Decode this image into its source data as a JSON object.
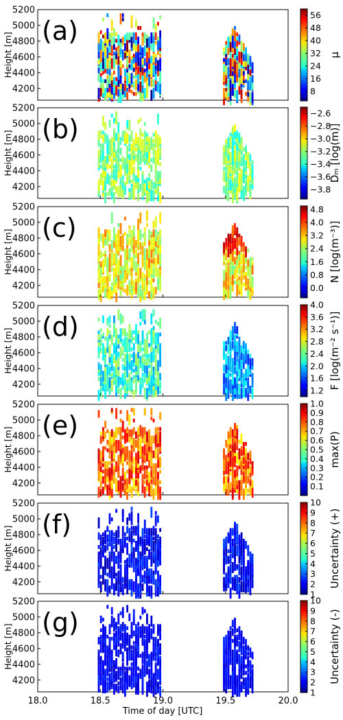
{
  "chart_data": {
    "type": "heatmap",
    "xlabel": "Time of day [UTC]",
    "x_ticks": [
      "18.0",
      "18.5",
      "19.0",
      "19.5",
      "20.0"
    ],
    "xlim": [
      18.0,
      20.0
    ],
    "ylim": [
      4050,
      5200
    ],
    "colormap": "jet",
    "panels": [
      {
        "id": "a",
        "label": "(a)",
        "ylabel": "Height [m]",
        "y_ticks": [
          "4200",
          "4400",
          "4600",
          "4800",
          "5000",
          "5200"
        ],
        "colorbar": {
          "label": "μ",
          "ticks": [
            "8",
            "16",
            "24",
            "32",
            "40",
            "48",
            "56"
          ],
          "min": 2,
          "max": 60
        },
        "value_style": "mixed",
        "mean_level": 0.5,
        "spread": 0.9,
        "show_x_ticklabels": false
      },
      {
        "id": "b",
        "label": "(b)",
        "ylabel": "Dₘ [log(m)]",
        "y_ticks": [
          "4200",
          "4400",
          "4600",
          "4800",
          "5000",
          "5200"
        ],
        "colorbar": {
          "label": "Dₘ [log(m)]",
          "ticks": [
            "−3.8",
            "−3.6",
            "−3.4",
            "−3.2",
            "−3.0",
            "−2.8",
            "−2.6"
          ],
          "min": -3.95,
          "max": -2.5
        },
        "value_style": "mid",
        "mean_level": 0.5,
        "spread": 0.25,
        "show_x_ticklabels": false
      },
      {
        "id": "c",
        "label": "(c)",
        "ylabel": "Height [m]",
        "y_ticks": [
          "4200",
          "4400",
          "4600",
          "4800",
          "5000",
          "5200"
        ],
        "colorbar": {
          "label": "N [log(m⁻³)]",
          "ticks": [
            "0.0",
            "0.8",
            "1.6",
            "2.4",
            "3.2",
            "4.0",
            "4.8"
          ],
          "min": -0.6,
          "max": 5.0
        },
        "value_style": "mid-high",
        "mean_level": 0.62,
        "spread": 0.3,
        "show_x_ticklabels": false
      },
      {
        "id": "d",
        "label": "(d)",
        "ylabel": "Height [m]",
        "y_ticks": [
          "4200",
          "4400",
          "4600",
          "4800",
          "5000",
          "5200"
        ],
        "colorbar": {
          "label": "F [log(m⁻² s⁻¹)]",
          "ticks": [
            "1.2",
            "1.6",
            "2.0",
            "2.4",
            "2.8",
            "3.2",
            "3.6",
            "4.0"
          ],
          "min": 1.0,
          "max": 4.0
        },
        "value_style": "mid-low",
        "mean_level": 0.42,
        "spread": 0.3,
        "show_x_ticklabels": false
      },
      {
        "id": "e",
        "label": "(e)",
        "ylabel": "Height [m]",
        "y_ticks": [
          "4200",
          "4400",
          "4600",
          "4800",
          "5000",
          "5200"
        ],
        "colorbar": {
          "label": "max(P)",
          "ticks": [
            "0.1",
            "0.2",
            "0.3",
            "0.4",
            "0.5",
            "0.6",
            "0.7",
            "0.8",
            "0.9",
            "1.0"
          ],
          "min": 0.0,
          "max": 1.0
        },
        "value_style": "high",
        "mean_level": 0.78,
        "spread": 0.3,
        "show_x_ticklabels": false
      },
      {
        "id": "f",
        "label": "(f)",
        "ylabel": "Height [m]",
        "y_ticks": [
          "4200",
          "4400",
          "4600",
          "4800",
          "5000",
          "5200"
        ],
        "colorbar": {
          "label": "Uncertainty (+)",
          "ticks": [
            "1",
            "2",
            "3",
            "4",
            "5",
            "6",
            "7",
            "8",
            "9",
            "10"
          ],
          "min": 1,
          "max": 10
        },
        "value_style": "low",
        "mean_level": 0.12,
        "spread": 0.15,
        "show_x_ticklabels": false
      },
      {
        "id": "g",
        "label": "(g)",
        "ylabel": "Height [m]",
        "y_ticks": [
          "4200",
          "4400",
          "4600",
          "4800",
          "5000",
          "5200"
        ],
        "colorbar": {
          "label": "Uncertainty (-)",
          "ticks": [
            "1",
            "2",
            "3",
            "4",
            "5",
            "6",
            "7",
            "8",
            "9",
            "10"
          ],
          "min": 1,
          "max": 10
        },
        "value_style": "low",
        "mean_level": 0.12,
        "spread": 0.1,
        "show_x_ticklabels": true
      }
    ],
    "data_regions": [
      {
        "name": "first-cloud",
        "x_range": [
          18.48,
          18.98
        ],
        "y_range": [
          4100,
          5150
        ]
      },
      {
        "name": "second-cloud",
        "x_range": [
          19.48,
          19.72
        ],
        "y_range": [
          4100,
          5000
        ]
      }
    ]
  }
}
